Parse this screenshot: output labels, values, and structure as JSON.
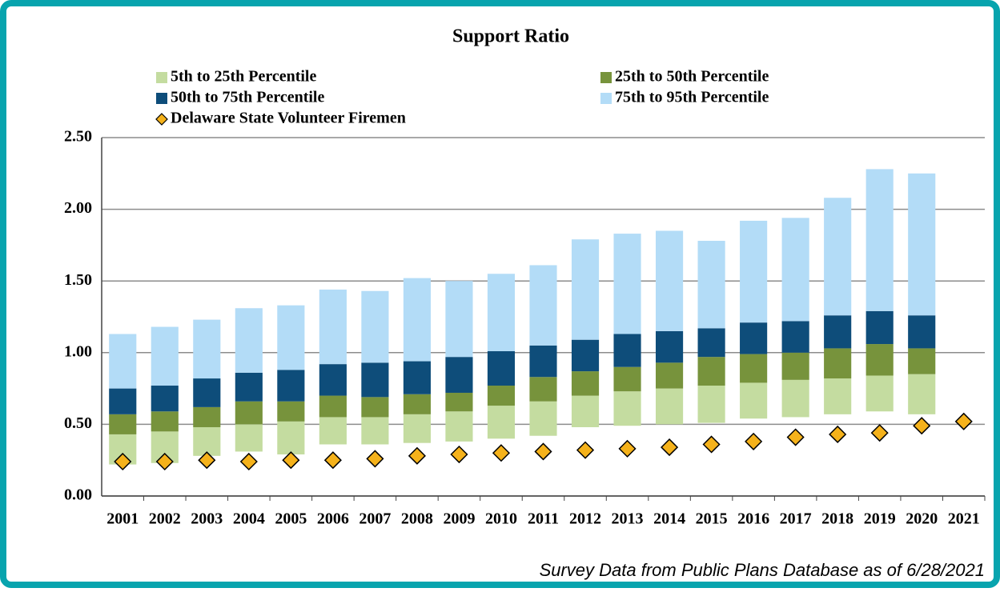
{
  "chart_data": {
    "type": "floating-stacked-bar",
    "title": "Support Ratio",
    "footnote": "Survey Data from Public Plans Database as of 6/28/2021",
    "categories": [
      "2001",
      "2002",
      "2003",
      "2004",
      "2005",
      "2006",
      "2007",
      "2008",
      "2009",
      "2010",
      "2011",
      "2012",
      "2013",
      "2014",
      "2015",
      "2016",
      "2017",
      "2018",
      "2019",
      "2020",
      "2021"
    ],
    "offsets": [
      0.22,
      0.23,
      0.28,
      0.31,
      0.29,
      0.36,
      0.36,
      0.37,
      0.38,
      0.4,
      0.42,
      0.48,
      0.49,
      0.5,
      0.51,
      0.54,
      0.55,
      0.57,
      0.59,
      0.57,
      null
    ],
    "series": [
      {
        "name": "5th to 25th Percentile",
        "color": "#c4dca0",
        "values": [
          0.21,
          0.22,
          0.2,
          0.19,
          0.23,
          0.19,
          0.19,
          0.2,
          0.21,
          0.23,
          0.24,
          0.22,
          0.24,
          0.25,
          0.26,
          0.25,
          0.26,
          0.25,
          0.25,
          0.28,
          null
        ]
      },
      {
        "name": "25th to 50th Percentile",
        "color": "#77933c",
        "values": [
          0.14,
          0.14,
          0.14,
          0.16,
          0.14,
          0.15,
          0.14,
          0.14,
          0.13,
          0.14,
          0.17,
          0.17,
          0.17,
          0.18,
          0.2,
          0.2,
          0.19,
          0.21,
          0.22,
          0.18,
          null
        ]
      },
      {
        "name": "50th to 75th Percentile",
        "color": "#0e4d7a",
        "values": [
          0.18,
          0.18,
          0.2,
          0.2,
          0.22,
          0.22,
          0.24,
          0.23,
          0.25,
          0.24,
          0.22,
          0.22,
          0.23,
          0.22,
          0.2,
          0.22,
          0.22,
          0.23,
          0.23,
          0.23,
          null
        ]
      },
      {
        "name": "75th to 95th Percentile",
        "color": "#b3dcf7",
        "values": [
          0.38,
          0.41,
          0.41,
          0.45,
          0.45,
          0.52,
          0.5,
          0.58,
          0.53,
          0.54,
          0.56,
          0.7,
          0.7,
          0.7,
          0.61,
          0.71,
          0.72,
          0.82,
          0.99,
          0.99,
          null
        ]
      },
      {
        "name": "Delaware State Volunteer Firemen",
        "color": "#f5b21b",
        "marker": "diamond",
        "values": [
          0.24,
          0.24,
          0.25,
          0.24,
          0.25,
          0.25,
          0.26,
          0.28,
          0.29,
          0.3,
          0.31,
          0.32,
          0.33,
          0.34,
          0.36,
          0.38,
          0.41,
          0.43,
          0.44,
          0.49,
          0.52
        ]
      }
    ],
    "ylim": [
      0,
      2.5
    ],
    "yticks": [
      {
        "value": 0,
        "label": "0.00"
      },
      {
        "value": 0.5,
        "label": "0.50"
      },
      {
        "value": 1,
        "label": "1.00"
      },
      {
        "value": 1.5,
        "label": "1.50"
      },
      {
        "value": 2,
        "label": "2.00"
      },
      {
        "value": 2.5,
        "label": "2.50"
      }
    ],
    "grid": true
  }
}
